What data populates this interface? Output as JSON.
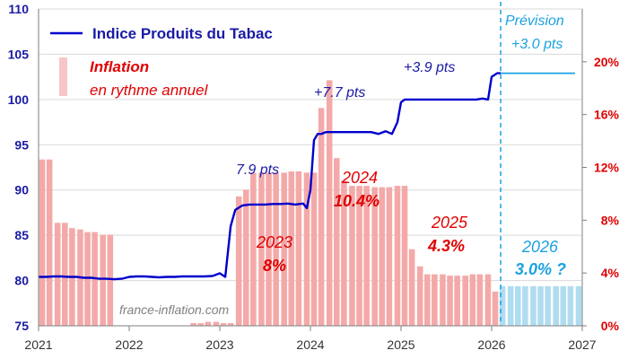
{
  "chart_data": {
    "type": "bar+line",
    "title": "",
    "x_axis": {
      "range": [
        2021,
        2027
      ],
      "tick_labels": [
        "2021",
        "2022",
        "2023",
        "2024",
        "2025",
        "2026",
        "2027"
      ]
    },
    "left_axis": {
      "range": [
        75,
        110
      ],
      "tick_labels": [
        "75",
        "80",
        "85",
        "90",
        "95",
        "100",
        "105",
        "110"
      ]
    },
    "right_axis": {
      "range": [
        0,
        24
      ],
      "tick_labels": [
        "0%",
        "4%",
        "8%",
        "12%",
        "16%",
        "20%"
      ]
    },
    "grid": "horizontal",
    "legend": {
      "placement": "top-left",
      "line_label": "Indice Produits du Tabac",
      "bar_label_1": "Inflation",
      "bar_label_2": "en rythme  annuel"
    },
    "annotations": {
      "forecast_title": "Prévision",
      "forecast_value": "+3.0 pts",
      "step_2023": "7.9 pts",
      "step_2024": "+7.7 pts",
      "step_2025": "+3.9 pts",
      "year_2023": "2023",
      "rate_2023": "8%",
      "year_2024": "2024",
      "rate_2024": "10.4%",
      "year_2025": "2025",
      "rate_2025": "4.3%",
      "year_2026": "2026",
      "rate_2026": "3.0% ?",
      "watermark": "france-inflation.com"
    },
    "colors": {
      "index_line": "#0000cc",
      "forecast_line": "#1ba1e2",
      "inflation_bar": "#f4a9a9",
      "forecast_bar": "#b0dcf0",
      "red_text": "#e00000",
      "blue_text": "#1a1aa6",
      "cyan_text": "#1ba1e2",
      "grid": "#d9d9d9"
    },
    "series": [
      {
        "name": "Indice Produits du Tabac",
        "kind": "line",
        "axis": "left",
        "x": [
          2021.0,
          2021.08,
          2021.17,
          2021.25,
          2021.33,
          2021.42,
          2021.5,
          2021.58,
          2021.67,
          2021.75,
          2021.83,
          2021.92,
          2022.0,
          2022.08,
          2022.17,
          2022.25,
          2022.33,
          2022.42,
          2022.5,
          2022.58,
          2022.67,
          2022.75,
          2022.83,
          2022.92,
          2023.0,
          2023.06,
          2023.12,
          2023.17,
          2023.25,
          2023.33,
          2023.42,
          2023.5,
          2023.58,
          2023.67,
          2023.75,
          2023.83,
          2023.92,
          2023.96,
          2024.0,
          2024.04,
          2024.08,
          2024.12,
          2024.17,
          2024.25,
          2024.33,
          2024.42,
          2024.5,
          2024.58,
          2024.67,
          2024.75,
          2024.83,
          2024.9,
          2024.96,
          2025.0,
          2025.04,
          2025.08,
          2025.17,
          2025.25,
          2025.33,
          2025.42,
          2025.5,
          2025.58,
          2025.67,
          2025.75,
          2025.83,
          2025.9,
          2025.96,
          2026.0,
          2026.06,
          2026.1
        ],
        "y": [
          80.4,
          80.4,
          80.45,
          80.45,
          80.4,
          80.4,
          80.3,
          80.3,
          80.2,
          80.2,
          80.15,
          80.2,
          80.4,
          80.45,
          80.45,
          80.4,
          80.35,
          80.4,
          80.4,
          80.45,
          80.45,
          80.45,
          80.45,
          80.5,
          80.8,
          80.4,
          86.0,
          87.8,
          88.3,
          88.4,
          88.4,
          88.4,
          88.45,
          88.45,
          88.5,
          88.4,
          88.5,
          88.0,
          90.0,
          95.5,
          96.2,
          96.2,
          96.4,
          96.4,
          96.4,
          96.4,
          96.4,
          96.4,
          96.4,
          96.2,
          96.5,
          96.2,
          97.5,
          99.7,
          100.0,
          100.0,
          100.0,
          100.0,
          100.0,
          100.0,
          100.0,
          100.0,
          100.0,
          100.0,
          100.0,
          100.1,
          100.0,
          102.5,
          102.9,
          102.9
        ]
      },
      {
        "name": "Prévision",
        "kind": "line",
        "axis": "left",
        "x": [
          2026.1,
          2026.5,
          2026.92
        ],
        "y": [
          102.9,
          102.9,
          102.9
        ]
      },
      {
        "name": "Inflation",
        "kind": "bar",
        "axis": "right",
        "x": [
          2021.04,
          2021.12,
          2021.21,
          2021.29,
          2021.37,
          2021.46,
          2021.54,
          2021.62,
          2021.71,
          2021.79,
          2022.71,
          2022.79,
          2022.87,
          2022.96,
          2023.04,
          2023.12,
          2023.21,
          2023.29,
          2023.37,
          2023.46,
          2023.54,
          2023.62,
          2023.71,
          2023.79,
          2023.87,
          2023.96,
          2024.04,
          2024.12,
          2024.21,
          2024.29,
          2024.37,
          2024.46,
          2024.54,
          2024.62,
          2024.71,
          2024.79,
          2024.87,
          2024.96,
          2025.04,
          2025.12,
          2025.21,
          2025.29,
          2025.37,
          2025.46,
          2025.54,
          2025.62,
          2025.71,
          2025.79,
          2025.87,
          2025.96,
          2026.04
        ],
        "y": [
          12.6,
          12.6,
          7.8,
          7.8,
          7.4,
          7.3,
          7.1,
          7.1,
          6.9,
          6.9,
          0.2,
          0.2,
          0.3,
          0.3,
          0.2,
          0.2,
          9.8,
          10.3,
          11.6,
          11.6,
          11.6,
          11.6,
          11.6,
          11.7,
          11.7,
          11.6,
          11.6,
          16.5,
          18.6,
          12.7,
          11.0,
          10.6,
          10.6,
          10.6,
          10.5,
          10.5,
          10.5,
          10.6,
          10.6,
          5.8,
          4.5,
          3.9,
          3.9,
          3.9,
          3.8,
          3.8,
          3.8,
          3.9,
          3.9,
          3.9,
          2.6
        ]
      },
      {
        "name": "Inflation (prévision)",
        "kind": "bar",
        "axis": "right",
        "x": [
          2026.12,
          2026.21,
          2026.29,
          2026.37,
          2026.46,
          2026.54,
          2026.62,
          2026.71,
          2026.79,
          2026.87,
          2026.96
        ],
        "y": [
          3.0,
          3.0,
          3.0,
          3.0,
          3.0,
          3.0,
          3.0,
          3.0,
          3.0,
          3.0,
          3.0
        ]
      }
    ],
    "forecast_start_x": 2026.1
  }
}
